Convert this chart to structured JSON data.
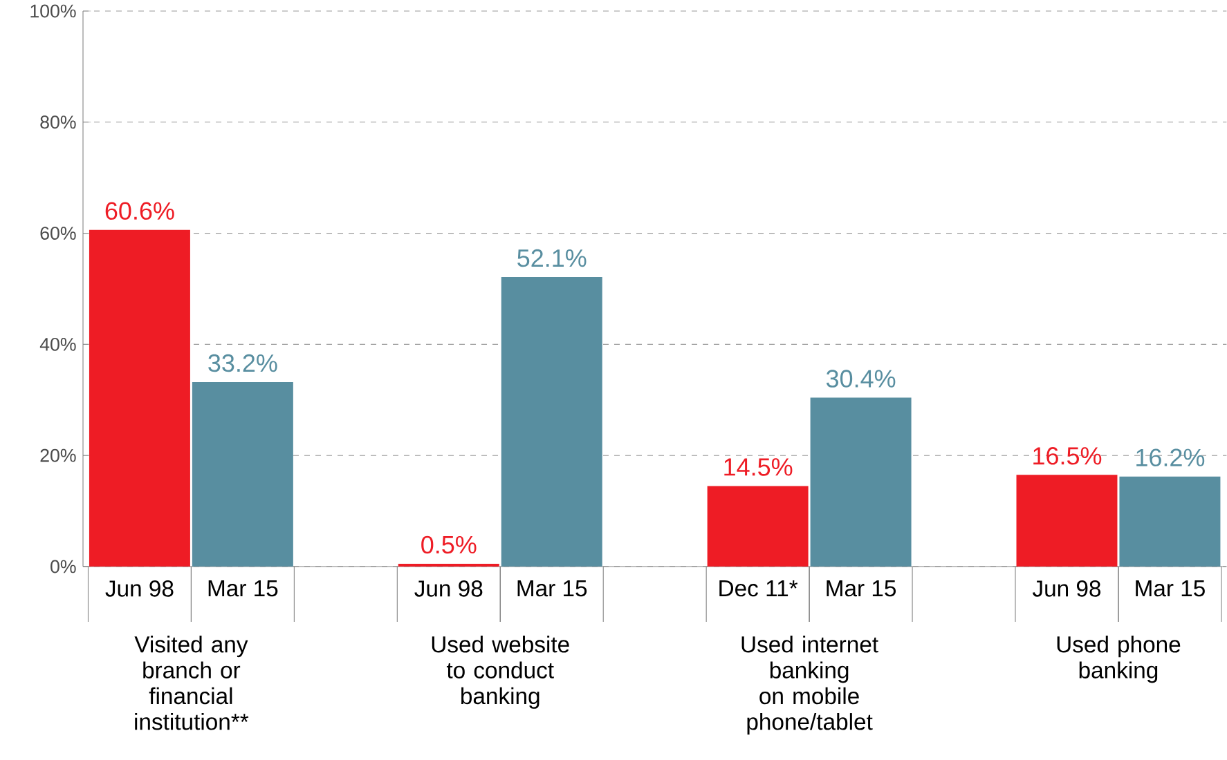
{
  "chart_data": {
    "type": "bar",
    "categories": [
      "Jun 98",
      "Mar 15",
      "Jun 98",
      "Mar 15",
      "Dec 11*",
      "Mar 15",
      "Jun 98",
      "Mar 15"
    ],
    "values": [
      60.6,
      33.2,
      0.5,
      52.1,
      14.5,
      30.4,
      16.5,
      16.2
    ],
    "colors": [
      "#ee1c25",
      "#588ea0",
      "#ee1c25",
      "#588ea0",
      "#ee1c25",
      "#588ea0",
      "#ee1c25",
      "#588ea0"
    ],
    "value_labels": [
      "60.6%",
      "33.2%",
      "0.5%",
      "52.1%",
      "14.5%",
      "30.4%",
      "16.5%",
      "16.2%"
    ],
    "annotations": [
      "Visited any branch or financial institution**",
      "Used website to conduct banking",
      "Used internet banking on mobile phone/tablet",
      "Used phone banking"
    ],
    "ylim": [
      0,
      100
    ],
    "yticks": [
      {
        "value": 0,
        "label": "0%"
      },
      {
        "value": 20,
        "label": "20%"
      },
      {
        "value": 40,
        "label": "40%"
      },
      {
        "value": 60,
        "label": "60%"
      },
      {
        "value": 80,
        "label": "80%"
      },
      {
        "value": 100,
        "label": "100%"
      }
    ],
    "grid": "y"
  }
}
